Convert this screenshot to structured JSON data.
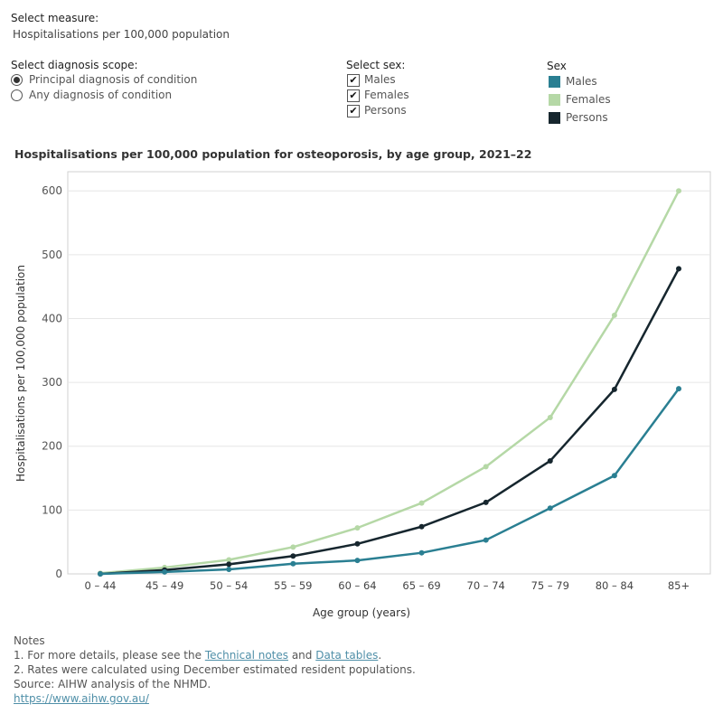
{
  "controls": {
    "measure_label": "Select measure:",
    "measure_value": "Hospitalisations per 100,000 population",
    "scope_label": "Select diagnosis scope:",
    "scope_options": [
      "Principal diagnosis of condition",
      "Any diagnosis of condition"
    ],
    "scope_selected": "Principal diagnosis of condition",
    "sex_label": "Select sex:",
    "sex_options": [
      "Males",
      "Females",
      "Persons"
    ],
    "sex_checked": [
      true,
      true,
      true
    ],
    "check_glyph": "✔"
  },
  "legend": {
    "title": "Sex",
    "items": [
      {
        "label": "Males",
        "color": "#2a7f92"
      },
      {
        "label": "Females",
        "color": "#b5d8a6"
      },
      {
        "label": "Persons",
        "color": "#16262e"
      }
    ]
  },
  "chart_data": {
    "type": "line",
    "title": "Hospitalisations per 100,000 population for osteoporosis, by age group, 2021–22",
    "xlabel": "Age group (years)",
    "ylabel": "Hospitalisations per 100,000 population",
    "categories": [
      "0 – 44",
      "45 – 49",
      "50 – 54",
      "55 – 59",
      "60 – 64",
      "65 – 69",
      "70 – 74",
      "75 – 79",
      "80 – 84",
      "85+"
    ],
    "ylim": [
      0,
      630
    ],
    "yticks": [
      0,
      100,
      200,
      300,
      400,
      500,
      600
    ],
    "grid": true,
    "series": [
      {
        "name": "Females",
        "color": "#b5d8a6",
        "values": [
          1,
          10,
          22,
          42,
          72,
          111,
          168,
          245,
          405,
          600
        ]
      },
      {
        "name": "Persons",
        "color": "#16262e",
        "values": [
          0,
          6,
          15,
          28,
          47,
          74,
          112,
          177,
          289,
          478
        ]
      },
      {
        "name": "Males",
        "color": "#2a7f92",
        "values": [
          0,
          3,
          7,
          16,
          21,
          33,
          53,
          103,
          154,
          290
        ]
      }
    ]
  },
  "notes": {
    "heading": "Notes",
    "note1_prefix": "1. For more details, please see the ",
    "note1_link1": "Technical notes",
    "note1_mid": " and ",
    "note1_link2": "Data tables",
    "note1_suffix": ".",
    "note2": "2. Rates were calculated using December estimated resident populations.",
    "source": "Source: AIHW analysis of the NHMD.",
    "url": "https://www.aihw.gov.au/"
  }
}
